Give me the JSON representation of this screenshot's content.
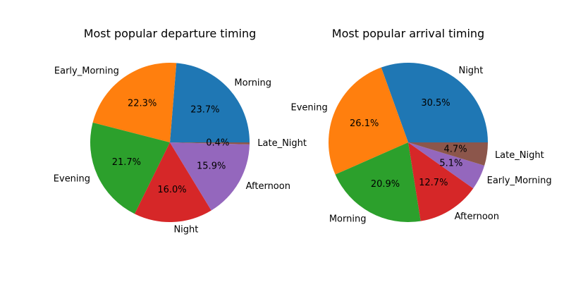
{
  "chart_data": [
    {
      "type": "pie",
      "title": "Most popular departure timing",
      "start_angle_deg": 0,
      "direction": "counterclockwise",
      "slices": [
        {
          "label": "Morning",
          "percent_label": "23.7%",
          "value": 23.7,
          "color": "#1f77b4"
        },
        {
          "label": "Early_Morning",
          "percent_label": "22.3%",
          "value": 22.3,
          "color": "#ff7f0e"
        },
        {
          "label": "Evening",
          "percent_label": "21.7%",
          "value": 21.7,
          "color": "#2ca02c"
        },
        {
          "label": "Night",
          "percent_label": "16.0%",
          "value": 16.0,
          "color": "#d62728"
        },
        {
          "label": "Afternoon",
          "percent_label": "15.9%",
          "value": 15.9,
          "color": "#9467bd"
        },
        {
          "label": "Late_Night",
          "percent_label": "0.4%",
          "value": 0.4,
          "color": "#8c564b"
        }
      ]
    },
    {
      "type": "pie",
      "title": "Most popular arrival timing",
      "start_angle_deg": 0,
      "direction": "counterclockwise",
      "slices": [
        {
          "label": "Night",
          "percent_label": "30.5%",
          "value": 30.5,
          "color": "#1f77b4"
        },
        {
          "label": "Evening",
          "percent_label": "26.1%",
          "value": 26.1,
          "color": "#ff7f0e"
        },
        {
          "label": "Morning",
          "percent_label": "20.9%",
          "value": 20.9,
          "color": "#2ca02c"
        },
        {
          "label": "Afternoon",
          "percent_label": "12.7%",
          "value": 12.7,
          "color": "#d62728"
        },
        {
          "label": "Early_Morning",
          "percent_label": "5.1%",
          "value": 5.1,
          "color": "#9467bd"
        },
        {
          "label": "Late_Night",
          "percent_label": "4.7%",
          "value": 4.7,
          "color": "#8c564b"
        }
      ]
    }
  ]
}
